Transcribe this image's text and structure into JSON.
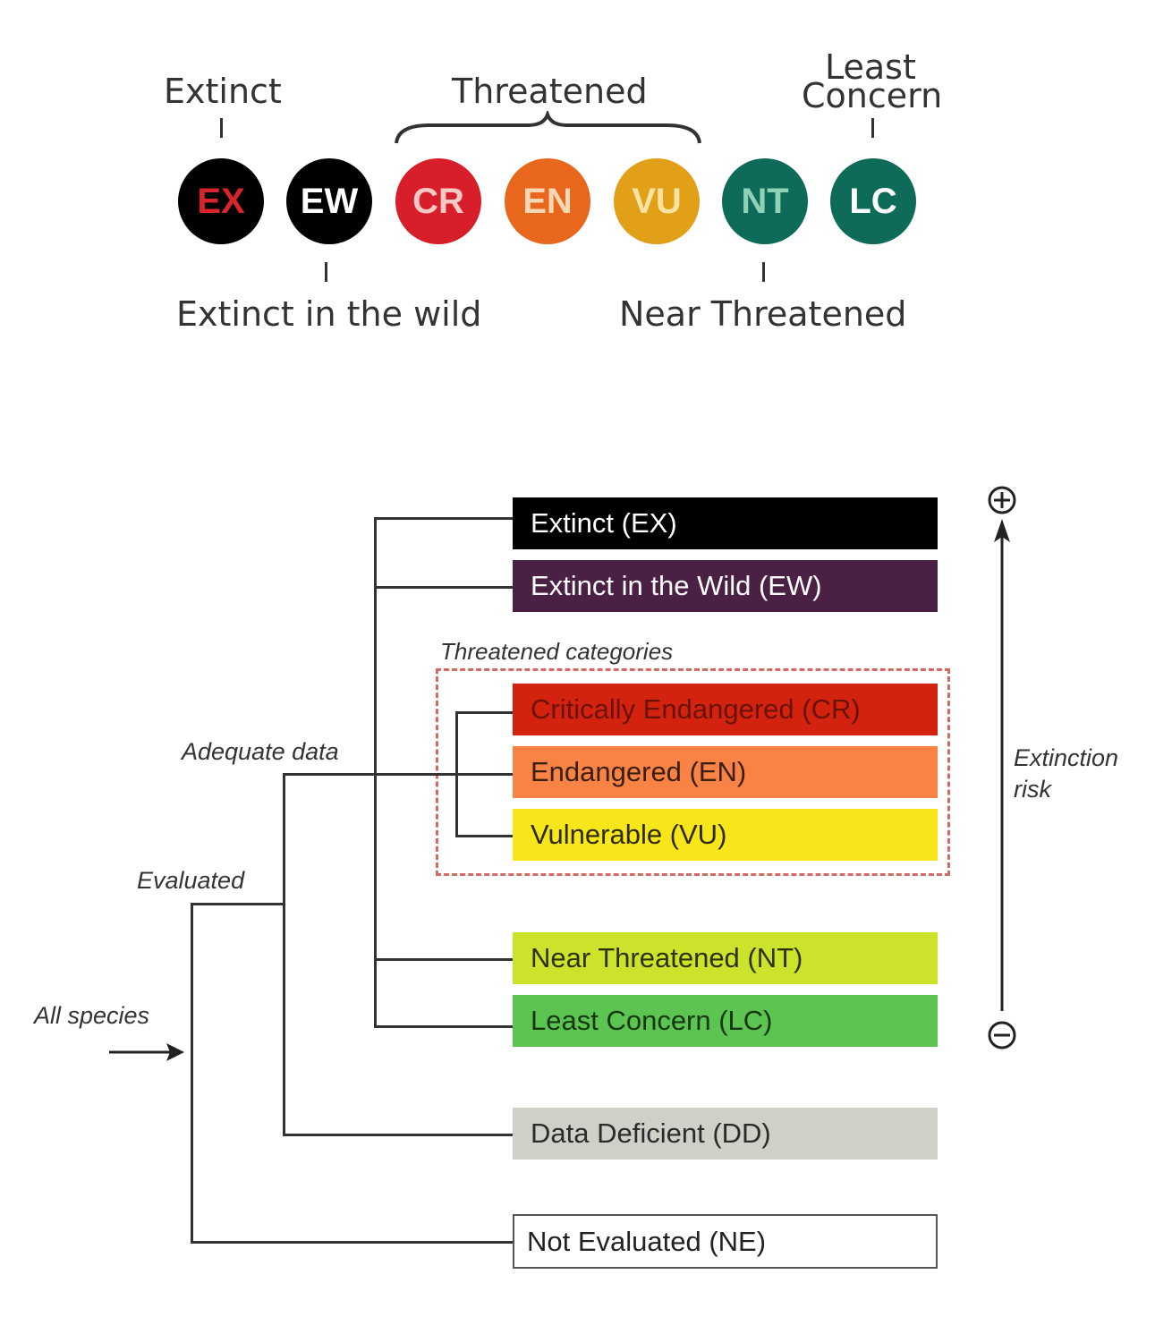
{
  "scale": {
    "labels": {
      "extinct": "Extinct",
      "threatened": "Threatened",
      "least_concern_line1": "Least",
      "least_concern_line2": "Concern",
      "extinct_wild": "Extinct in the wild",
      "near_threatened": "Near Threatened"
    },
    "circles": [
      {
        "code": "EX",
        "bg": "#000000",
        "fg": "#d9242b"
      },
      {
        "code": "EW",
        "bg": "#000000",
        "fg": "#ffffff"
      },
      {
        "code": "CR",
        "bg": "#d81e2a",
        "fg": "#f6c9c4"
      },
      {
        "code": "EN",
        "bg": "#e8671d",
        "fg": "#f7d7b4"
      },
      {
        "code": "VU",
        "bg": "#e2a019",
        "fg": "#f8e3a2"
      },
      {
        "code": "NT",
        "bg": "#0f6b59",
        "fg": "#8fd1b4"
      },
      {
        "code": "LC",
        "bg": "#0f6b59",
        "fg": "#ffffff"
      }
    ]
  },
  "tree": {
    "labels": {
      "all_species": "All species",
      "evaluated": "Evaluated",
      "adequate_data": "Adequate data",
      "threatened_categories": "Threatened categories",
      "extinction_risk_line1": "Extinction",
      "extinction_risk_line2": "risk",
      "plus": "+",
      "minus": "−"
    },
    "categories": [
      {
        "label": "Extinct (EX)",
        "bg": "#000000",
        "fg": "#ffffff"
      },
      {
        "label": "Extinct in the Wild (EW)",
        "bg": "#4a2145",
        "fg": "#ffffff"
      },
      {
        "label": "Critically Endangered (CR)",
        "bg": "#d3230f",
        "fg": "#6a1208"
      },
      {
        "label": "Endangered (EN)",
        "bg": "#f98245",
        "fg": "#3a1f10"
      },
      {
        "label": "Vulnerable (VU)",
        "bg": "#f7e71a",
        "fg": "#2e2a08"
      },
      {
        "label": "Near Threatened (NT)",
        "bg": "#cce22b",
        "fg": "#2c330a"
      },
      {
        "label": "Least Concern (LC)",
        "bg": "#5cc551",
        "fg": "#17360f"
      },
      {
        "label": "Data Deficient (DD)",
        "bg": "#d0d0c8",
        "fg": "#2b2b2b"
      },
      {
        "label": "Not Evaluated (NE)",
        "bg": "#ffffff",
        "fg": "#222222"
      }
    ]
  }
}
